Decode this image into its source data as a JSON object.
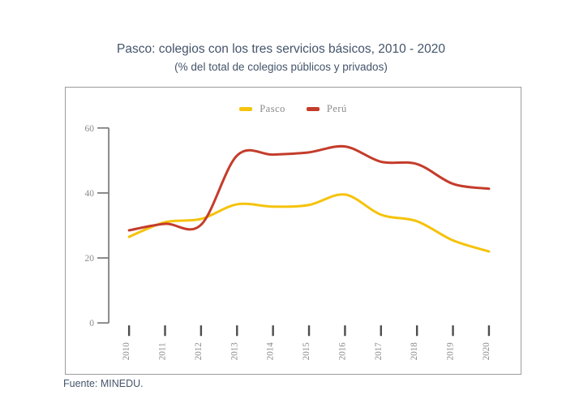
{
  "chart_data": {
    "type": "line",
    "title": "Pasco: colegios con los tres servicios básicos, 2010 - 2020",
    "subtitle": "(% del total de colegios públicos y privados)",
    "categories": [
      "2010",
      "2011",
      "2012",
      "2013",
      "2014",
      "2015",
      "2016",
      "2017",
      "2018",
      "2019",
      "2020"
    ],
    "series": [
      {
        "name": "Pasco",
        "color": "#F5C30B",
        "values": [
          26.5,
          31.0,
          32.0,
          36.5,
          35.8,
          36.3,
          39.5,
          33.3,
          31.3,
          25.4,
          22.0
        ]
      },
      {
        "name": "Perú",
        "color": "#C43C2B",
        "values": [
          28.5,
          30.5,
          30.2,
          51.5,
          51.8,
          52.5,
          54.3,
          49.6,
          48.9,
          42.8,
          41.3
        ]
      }
    ],
    "xlabel": "",
    "ylabel": "",
    "ylim": [
      0,
      60
    ],
    "yticks": [
      0,
      20,
      40,
      60
    ],
    "grid": false,
    "legend_position": "top-center",
    "line_smoothing": true
  },
  "source_note": "Fuente: MINEDU.",
  "colors": {
    "title_text": "#44546A",
    "axis_text": "#8c8c8c",
    "axis_line": "#7f7f7f",
    "x_tick_dash": "#4d4d4d",
    "frame_border": "#9b9b9b"
  }
}
